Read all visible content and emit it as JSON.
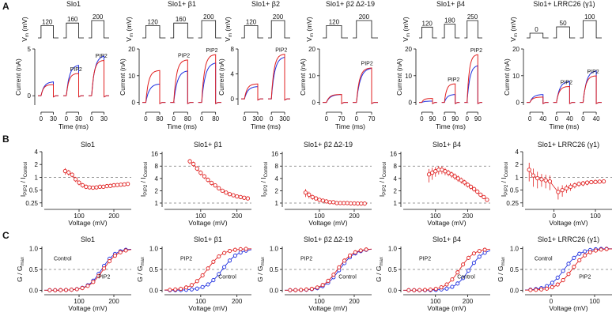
{
  "colors": {
    "control": "#1f2fe0",
    "pip2": "#e02020",
    "axis": "#111111",
    "reference": "#777777"
  },
  "panel_letters": [
    "A",
    "B",
    "C"
  ],
  "constructs": [
    "Slo1",
    "Slo1+ β1",
    "Slo1+ β2 Δ2-19",
    "Slo1+ β4",
    "Slo1+ LRRC26 (γ1)"
  ],
  "panel_a": {
    "vm_label": "V",
    "vm_sub": "m",
    "vm_unit": " (mV)",
    "current_label": "Current (nA)",
    "time_label": "Time (ms)",
    "pip2_label": "PIP2"
  },
  "panel_b": {
    "ylabel_main": "I",
    "ylabel_sub1": "PIP2",
    "ylabel_mid": " / I",
    "ylabel_sub2": "Control",
    "xlabel": "Voltage (mV)"
  },
  "panel_c": {
    "ylabel_main": "G / G",
    "ylabel_sub": "max",
    "xlabel": "Voltage (mV)",
    "control_label": "Control",
    "pip2_label": "PIP2"
  },
  "chart_data": [
    {
      "panel": "A",
      "construct": "Slo1",
      "type": "line",
      "step_voltages_mV": [
        120,
        160,
        200
      ],
      "ylim": [
        -1,
        5
      ],
      "yticks": [
        0,
        5
      ],
      "time_ticks_ms": [
        0,
        30
      ],
      "sweep_ms": 30,
      "series": [
        {
          "name": "Control",
          "peak_nA": [
            1.5,
            3.3,
            4.3
          ]
        },
        {
          "name": "PIP2",
          "peak_nA": [
            1.2,
            2.4,
            3.8
          ]
        }
      ],
      "annotations": [
        "PIP2"
      ]
    },
    {
      "panel": "A",
      "construct": "Slo1+ β1",
      "type": "line",
      "step_voltages_mV": [
        120,
        160,
        200
      ],
      "ylim": [
        -1,
        20
      ],
      "yticks": [
        0,
        10,
        20
      ],
      "time_ticks_ms": [
        0,
        80
      ],
      "sweep_ms": 80,
      "series": [
        {
          "name": "Control",
          "peak_nA": [
            7,
            12,
            15
          ]
        },
        {
          "name": "PIP2",
          "peak_nA": [
            12,
            16,
            18
          ]
        }
      ],
      "annotations": [
        "PIP2"
      ]
    },
    {
      "panel": "A",
      "construct": "Slo1+ β2",
      "type": "line",
      "step_voltages_mV": [
        120,
        200
      ],
      "ylim": [
        -1,
        8
      ],
      "yticks": [
        0,
        4,
        8
      ],
      "time_ticks_ms": [
        0,
        300
      ],
      "sweep_ms": 300,
      "series": [
        {
          "name": "Control",
          "peak_nA": [
            2.0,
            6.8
          ]
        },
        {
          "name": "PIP2",
          "peak_nA": [
            2.4,
            7.2
          ]
        }
      ],
      "annotations": [
        "PIP2"
      ]
    },
    {
      "panel": "A",
      "construct": "Slo1+ β2 Δ2-19",
      "type": "line",
      "step_voltages_mV": [
        120,
        200
      ],
      "ylim": [
        -1,
        20
      ],
      "yticks": [
        0,
        10,
        20
      ],
      "time_ticks_ms": [
        0,
        70
      ],
      "sweep_ms": 70,
      "series": [
        {
          "name": "Control",
          "peak_nA": [
            3,
            13
          ]
        },
        {
          "name": "PIP2",
          "peak_nA": [
            3,
            13
          ]
        }
      ],
      "annotations": [
        "PIP2"
      ]
    },
    {
      "panel": "A",
      "construct": "Slo1+ β4",
      "type": "line",
      "step_voltages_mV": [
        120,
        180,
        250
      ],
      "ylim": [
        -1,
        20
      ],
      "yticks": [
        0,
        10,
        20
      ],
      "time_ticks_ms": [
        0,
        90
      ],
      "sweep_ms": 90,
      "series": [
        {
          "name": "Control",
          "peak_nA": [
            0.5,
            3,
            14
          ]
        },
        {
          "name": "PIP2",
          "peak_nA": [
            1.5,
            7,
            18
          ]
        }
      ],
      "annotations": [
        "PIP2"
      ]
    },
    {
      "panel": "A",
      "construct": "Slo1+ LRRC26 (γ1)",
      "type": "line",
      "step_voltages_mV": [
        0,
        50,
        100
      ],
      "ylim": [
        -1,
        20
      ],
      "yticks": [
        0,
        10,
        20
      ],
      "time_ticks_ms": [
        0,
        40
      ],
      "sweep_ms": 40,
      "series": [
        {
          "name": "Control",
          "peak_nA": [
            3,
            8,
            12
          ]
        },
        {
          "name": "PIP2",
          "peak_nA": [
            2,
            6,
            10
          ]
        }
      ],
      "annotations": [
        "PIP2"
      ]
    },
    {
      "panel": "B",
      "construct": "Slo1",
      "type": "scatter",
      "ylog": true,
      "ylim": [
        0.2,
        4
      ],
      "yticks": [
        0.25,
        0.5,
        1,
        2,
        4
      ],
      "ref_lines": [
        1
      ],
      "xlim": [
        0,
        250
      ],
      "xticks": [
        100,
        200
      ],
      "x": [
        60,
        70,
        80,
        90,
        100,
        110,
        120,
        130,
        140,
        150,
        160,
        170,
        180,
        190,
        200,
        210,
        220,
        230,
        240
      ],
      "y": [
        1.4,
        1.3,
        1.15,
        0.9,
        0.75,
        0.65,
        0.6,
        0.58,
        0.57,
        0.58,
        0.6,
        0.6,
        0.62,
        0.63,
        0.65,
        0.66,
        0.67,
        0.68,
        0.7
      ],
      "err": [
        0.25,
        0.2,
        0.15,
        0.12,
        0.1,
        0.08,
        0.07,
        0.06,
        0.06,
        0.06,
        0.06,
        0.06,
        0.06,
        0.06,
        0.06,
        0.06,
        0.06,
        0.06,
        0.06
      ]
    },
    {
      "panel": "B",
      "construct": "Slo1+ β1",
      "type": "scatter",
      "ylog": true,
      "ylim": [
        0.8,
        18
      ],
      "yticks": [
        1,
        2,
        4,
        8,
        16
      ],
      "ref_lines": [
        1,
        8
      ],
      "xlim": [
        0,
        240
      ],
      "xticks": [
        100,
        200
      ],
      "x": [
        70,
        80,
        90,
        100,
        110,
        120,
        130,
        140,
        150,
        160,
        170,
        180,
        190,
        200,
        210,
        220,
        230
      ],
      "y": [
        10.5,
        9,
        7,
        5.5,
        4.5,
        3.7,
        3.1,
        2.7,
        2.3,
        2.0,
        1.8,
        1.65,
        1.55,
        1.45,
        1.4,
        1.35,
        1.3
      ],
      "err": [
        1.5,
        1.3,
        1,
        0.8,
        0.6,
        0.5,
        0.4,
        0.3,
        0.25,
        0.2,
        0.15,
        0.12,
        0.1,
        0.1,
        0.1,
        0.1,
        0.1
      ]
    },
    {
      "panel": "B",
      "construct": "Slo1+ β2 Δ2-19",
      "type": "scatter",
      "ylog": true,
      "ylim": [
        0.8,
        18
      ],
      "yticks": [
        1,
        2,
        4,
        8,
        16
      ],
      "ref_lines": [
        1,
        8
      ],
      "xlim": [
        0,
        250
      ],
      "xticks": [
        100,
        200
      ],
      "x": [
        60,
        70,
        80,
        90,
        100,
        110,
        120,
        130,
        140,
        150,
        160,
        170,
        180,
        190,
        200,
        210,
        220,
        230
      ],
      "y": [
        1.8,
        1.6,
        1.4,
        1.3,
        1.2,
        1.15,
        1.1,
        1.05,
        1.05,
        1.0,
        1.0,
        1.0,
        1.0,
        0.98,
        0.98,
        0.97,
        0.97,
        0.97
      ],
      "err": [
        0.4,
        0.3,
        0.2,
        0.15,
        0.12,
        0.1,
        0.08,
        0.07,
        0.06,
        0.05,
        0.05,
        0.05,
        0.05,
        0.05,
        0.05,
        0.05,
        0.05,
        0.05
      ]
    },
    {
      "panel": "B",
      "construct": "Slo1+ β4",
      "type": "scatter",
      "ylog": true,
      "ylim": [
        0.8,
        18
      ],
      "yticks": [
        1,
        2,
        4,
        8,
        16
      ],
      "ref_lines": [
        1,
        8
      ],
      "xlim": [
        0,
        270
      ],
      "xticks": [
        100,
        200
      ],
      "x": [
        80,
        90,
        100,
        110,
        120,
        130,
        140,
        150,
        160,
        170,
        180,
        190,
        200,
        210,
        220,
        230,
        240,
        250,
        260
      ],
      "y": [
        5,
        5.5,
        6,
        6.5,
        6.5,
        6,
        5.5,
        5,
        4.5,
        4,
        3.6,
        3.2,
        2.8,
        2.5,
        2.2,
        1.9,
        1.6,
        1.4,
        1.2
      ],
      "err": [
        1.8,
        1.8,
        1.6,
        1.5,
        1.4,
        1.2,
        1.0,
        0.9,
        0.8,
        0.7,
        0.6,
        0.5,
        0.4,
        0.35,
        0.3,
        0.25,
        0.2,
        0.15,
        0.12
      ]
    },
    {
      "panel": "B",
      "construct": "Slo1+ LRRC26 (γ1)",
      "type": "scatter",
      "ylog": true,
      "ylim": [
        0.2,
        4
      ],
      "yticks": [
        0.25,
        0.5,
        1,
        2,
        4
      ],
      "ref_lines": [
        1
      ],
      "xlim": [
        -70,
        140
      ],
      "xticks": [
        0,
        100
      ],
      "x": [
        -60,
        -50,
        -40,
        -30,
        -20,
        -10,
        10,
        20,
        30,
        40,
        50,
        60,
        70,
        80,
        90,
        100,
        110,
        120
      ],
      "y": [
        1.5,
        1.1,
        0.95,
        0.9,
        0.85,
        0.8,
        0.45,
        0.5,
        0.55,
        0.6,
        0.65,
        0.7,
        0.72,
        0.75,
        0.77,
        0.78,
        0.79,
        0.8
      ],
      "err": [
        0.7,
        0.5,
        0.4,
        0.3,
        0.3,
        0.3,
        0.15,
        0.15,
        0.12,
        0.12,
        0.1,
        0.1,
        0.1,
        0.1,
        0.08,
        0.08,
        0.08,
        0.08
      ]
    },
    {
      "panel": "C",
      "construct": "Slo1",
      "type": "scatter",
      "ylim": [
        -0.05,
        1.05
      ],
      "yticks": [
        0,
        0.5,
        1.0
      ],
      "xlim": [
        0,
        250
      ],
      "xticks": [
        100,
        200
      ],
      "series": [
        {
          "name": "Control",
          "v_half_mV": 165,
          "slope_mV": 20
        },
        {
          "name": "PIP2",
          "v_half_mV": 170,
          "slope_mV": 21
        }
      ]
    },
    {
      "panel": "C",
      "construct": "Slo1+ β1",
      "type": "scatter",
      "ylim": [
        -0.05,
        1.05
      ],
      "yticks": [
        0,
        0.5,
        1.0
      ],
      "xlim": [
        0,
        240
      ],
      "xticks": [
        100,
        200
      ],
      "series": [
        {
          "name": "Control",
          "v_half_mV": 160,
          "slope_mV": 22
        },
        {
          "name": "PIP2",
          "v_half_mV": 118,
          "slope_mV": 22
        }
      ]
    },
    {
      "panel": "C",
      "construct": "Slo1+ β2 Δ2-19",
      "type": "scatter",
      "ylim": [
        -0.05,
        1.05
      ],
      "yticks": [
        0,
        0.5,
        1.0
      ],
      "xlim": [
        0,
        250
      ],
      "xticks": [
        100,
        200
      ],
      "series": [
        {
          "name": "Control",
          "v_half_mV": 158,
          "slope_mV": 22
        },
        {
          "name": "PIP2",
          "v_half_mV": 152,
          "slope_mV": 22
        }
      ]
    },
    {
      "panel": "C",
      "construct": "Slo1+ β4",
      "type": "scatter",
      "ylim": [
        -0.05,
        1.05
      ],
      "yticks": [
        0,
        0.5,
        1.0
      ],
      "xlim": [
        0,
        270
      ],
      "xticks": [
        100,
        200
      ],
      "series": [
        {
          "name": "Control",
          "v_half_mV": 205,
          "slope_mV": 22
        },
        {
          "name": "PIP2",
          "v_half_mV": 175,
          "slope_mV": 22
        }
      ]
    },
    {
      "panel": "C",
      "construct": "Slo1+ LRRC26 (γ1)",
      "type": "scatter",
      "ylim": [
        -0.05,
        1.05
      ],
      "yticks": [
        0,
        0.5,
        1.0
      ],
      "xlim": [
        -60,
        140
      ],
      "xticks": [
        0,
        100
      ],
      "series": [
        {
          "name": "Control",
          "v_half_mV": 30,
          "slope_mV": 18
        },
        {
          "name": "PIP2",
          "v_half_mV": 48,
          "slope_mV": 18
        }
      ]
    }
  ]
}
